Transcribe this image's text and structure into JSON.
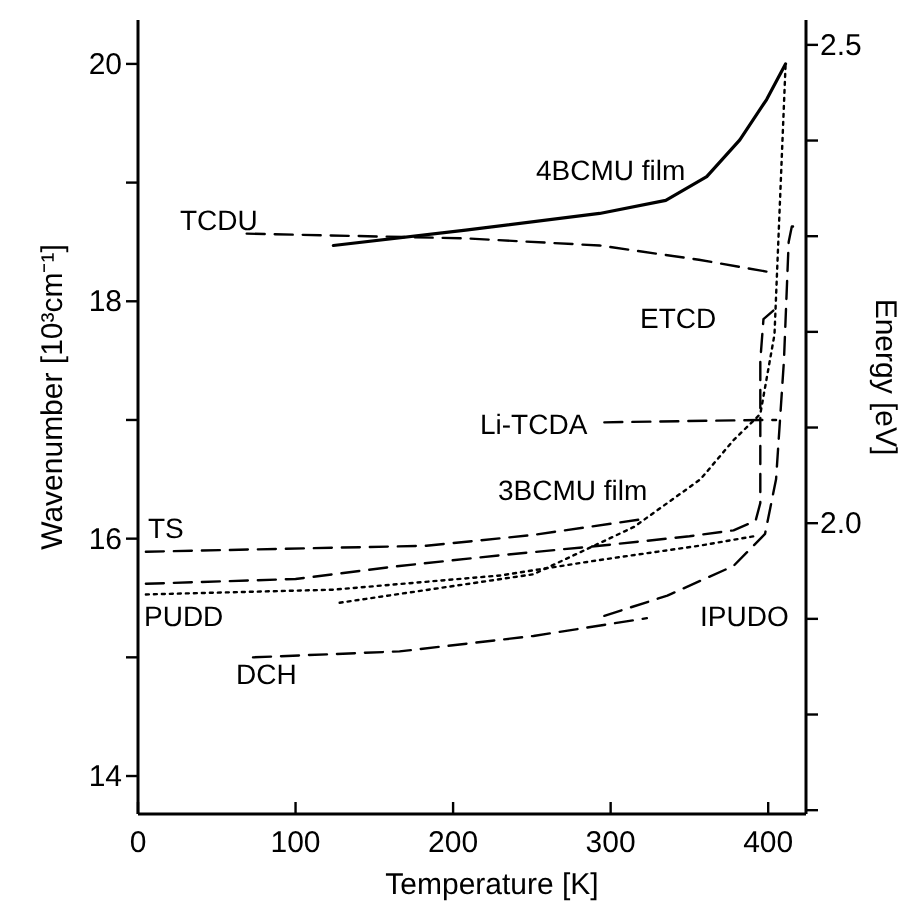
{
  "chart_data": {
    "type": "line",
    "xlabel": "Temperature [K]",
    "ylabel": "Wavenumber [10³cm⁻¹]",
    "y2label": "Energy [eV]",
    "xlim": [
      0,
      424
    ],
    "xticks": [
      0,
      100,
      200,
      300,
      400
    ],
    "ylim": [
      13.68,
      20.37
    ],
    "yticks": [
      14,
      {
        "value": 15,
        "label": null
      },
      16,
      {
        "value": 17,
        "label": null
      },
      18,
      {
        "value": 19,
        "label": null
      },
      20
    ],
    "y2lim": [
      1.696,
      2.526
    ],
    "y2ticks": [
      {
        "value": 1.7,
        "label": null
      },
      {
        "value": 1.8,
        "label": null
      },
      {
        "value": 1.9,
        "label": null
      },
      {
        "value": 2.0,
        "label": "2.0"
      },
      {
        "value": 2.1,
        "label": null
      },
      {
        "value": 2.2,
        "label": null
      },
      {
        "value": 2.3,
        "label": null
      },
      {
        "value": 2.4,
        "label": null
      },
      2.5
    ],
    "grid": false,
    "marker": "none",
    "series": [
      {
        "name": "4BCMU film",
        "color": "#000000",
        "line_style": "solid",
        "x": [
          124,
          208,
          293,
          335,
          361,
          382,
          399,
          411
        ],
        "values": [
          18.47,
          18.6,
          18.74,
          18.85,
          19.05,
          19.36,
          19.7,
          20.0
        ]
      },
      {
        "name": "TCDU",
        "color": "#000000",
        "line_style": "dashed",
        "x": [
          69,
          208,
          293,
          356,
          399
        ],
        "values": [
          18.57,
          18.53,
          18.47,
          18.35,
          18.25
        ]
      },
      {
        "name": "ETCD",
        "color": "#000000",
        "line_style": "dashed",
        "x": [
          5,
          100,
          166,
          230,
          293,
          350,
          378,
          392,
          395,
          395,
          397,
          404
        ],
        "values": [
          15.62,
          15.66,
          15.77,
          15.86,
          15.94,
          16.02,
          16.07,
          16.15,
          16.3,
          17.5,
          17.85,
          17.93
        ]
      },
      {
        "name": "Li-TCDA",
        "color": "#000000",
        "line_style": "dashed",
        "x": [
          296,
          395,
          405
        ],
        "values": [
          16.98,
          17.0,
          17.0
        ]
      },
      {
        "name": "3BCMU film",
        "color": "#000000",
        "line_style": "dotted",
        "x": [
          128,
          251,
          315,
          357,
          378,
          395,
          404,
          411
        ],
        "values": [
          15.46,
          15.7,
          16.1,
          16.5,
          16.83,
          17.05,
          17.72,
          19.98
        ]
      },
      {
        "name": "TS",
        "color": "#000000",
        "line_style": "dashed",
        "x": [
          5,
          183,
          250,
          318
        ],
        "values": [
          15.89,
          15.94,
          16.03,
          16.16
        ]
      },
      {
        "name": "PUDD",
        "color": "#000000",
        "line_style": "dotted",
        "x": [
          5,
          124,
          230,
          293,
          356,
          391
        ],
        "values": [
          15.53,
          15.57,
          15.69,
          15.82,
          15.94,
          16.02
        ]
      },
      {
        "name": "DCH",
        "color": "#000000",
        "line_style": "dashed",
        "x": [
          73,
          166,
          251,
          323
        ],
        "values": [
          15.0,
          15.05,
          15.18,
          15.33
        ]
      },
      {
        "name": "IPUDO",
        "color": "#000000",
        "line_style": "dashed",
        "x": [
          296,
          336,
          378,
          398,
          405,
          410,
          413,
          415,
          420
        ],
        "values": [
          15.35,
          15.52,
          15.77,
          16.04,
          16.5,
          17.5,
          18.5,
          18.63,
          18.63
        ]
      }
    ]
  }
}
